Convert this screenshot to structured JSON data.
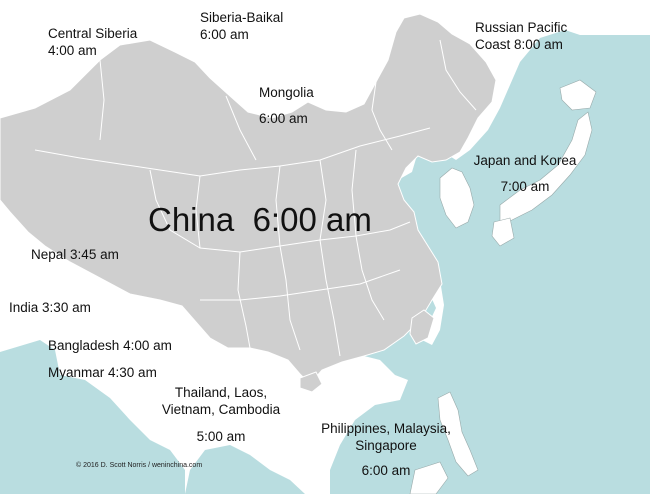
{
  "colors": {
    "sea": "#b9dde0",
    "land_china": "#cfcfcf",
    "land_other": "#ffffff",
    "border": "#ffffff",
    "text": "#111111"
  },
  "zones": {
    "central_siberia": {
      "name": "Central Siberia",
      "time": "4:00 am"
    },
    "siberia_baikal": {
      "name": "Siberia-Baikal",
      "time": "6:00 am"
    },
    "mongolia": {
      "name": "Mongolia",
      "time": "6:00 am"
    },
    "russian_pacific": {
      "name_line1": "Russian Pacific",
      "name_line2": "Coast",
      "time": "8:00 am"
    },
    "japan_korea": {
      "name": "Japan and Korea",
      "time": "7:00 am"
    },
    "china": {
      "name": "China",
      "time": "6:00 am"
    },
    "nepal": {
      "name": "Nepal",
      "time": "3:45 am"
    },
    "india": {
      "name": "India",
      "time": "3:30 am"
    },
    "bangladesh": {
      "name": "Bangladesh",
      "time": "4:00 am"
    },
    "myanmar": {
      "name": "Myanmar",
      "time": "4:30 am"
    },
    "indochina": {
      "name_line1": "Thailand, Laos,",
      "name_line2": "Vietnam, Cambodia",
      "time": "5:00 am"
    },
    "se_asia": {
      "name_line1": "Philippines, Malaysia,",
      "name_line2": "Singapore",
      "time": "6:00 am"
    }
  },
  "credit": "© 2016  D. Scott Norris / weninchina.com"
}
